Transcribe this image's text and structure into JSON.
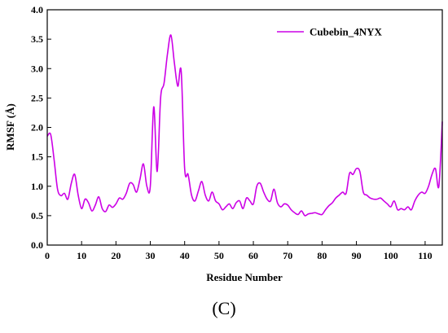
{
  "caption": "(C)",
  "colors": {
    "series": "#cc00e6",
    "axis": "#000000"
  },
  "chart_data": {
    "type": "line",
    "title": "",
    "xlabel": "Residue Number",
    "ylabel": "RMSF (Å)",
    "xlim": [
      0,
      115
    ],
    "ylim": [
      0.0,
      4.0
    ],
    "xticks": [
      "0",
      "10",
      "20",
      "30",
      "40",
      "50",
      "60",
      "70",
      "80",
      "90",
      "100",
      "110"
    ],
    "yticks": [
      "0.0",
      "0.5",
      "1.0",
      "1.5",
      "2.0",
      "2.5",
      "3.0",
      "3.5",
      "4.0"
    ],
    "grid": false,
    "legend_position": "top-right",
    "series": [
      {
        "name": "Cubebin_4NYX",
        "color": "#cc00e6",
        "x": [
          0,
          1,
          2,
          3,
          4,
          5,
          6,
          7,
          8,
          9,
          10,
          11,
          12,
          13,
          14,
          15,
          16,
          17,
          18,
          19,
          20,
          21,
          22,
          23,
          24,
          25,
          26,
          27,
          28,
          29,
          30,
          31,
          32,
          33,
          34,
          35,
          36,
          37,
          38,
          39,
          40,
          41,
          42,
          43,
          44,
          45,
          46,
          47,
          48,
          49,
          50,
          51,
          52,
          53,
          54,
          55,
          56,
          57,
          58,
          59,
          60,
          61,
          62,
          63,
          64,
          65,
          66,
          67,
          68,
          69,
          70,
          71,
          72,
          73,
          74,
          75,
          76,
          77,
          78,
          79,
          80,
          81,
          82,
          83,
          84,
          85,
          86,
          87,
          88,
          89,
          90,
          91,
          92,
          93,
          94,
          95,
          96,
          97,
          98,
          99,
          100,
          101,
          102,
          103,
          104,
          105,
          106,
          107,
          108,
          109,
          110,
          111,
          112,
          113,
          114,
          115
        ],
        "y": [
          1.85,
          1.88,
          1.45,
          0.95,
          0.84,
          0.88,
          0.78,
          1.05,
          1.2,
          0.85,
          0.62,
          0.78,
          0.72,
          0.58,
          0.68,
          0.82,
          0.62,
          0.57,
          0.68,
          0.64,
          0.7,
          0.8,
          0.78,
          0.88,
          1.05,
          1.03,
          0.9,
          1.12,
          1.38,
          1.0,
          1.0,
          2.35,
          1.25,
          2.5,
          2.75,
          3.25,
          3.57,
          3.1,
          2.7,
          2.95,
          1.3,
          1.2,
          0.85,
          0.75,
          0.92,
          1.08,
          0.85,
          0.75,
          0.9,
          0.75,
          0.7,
          0.6,
          0.65,
          0.7,
          0.62,
          0.72,
          0.75,
          0.62,
          0.8,
          0.75,
          0.7,
          1.0,
          1.05,
          0.9,
          0.78,
          0.75,
          0.95,
          0.72,
          0.65,
          0.7,
          0.68,
          0.6,
          0.55,
          0.52,
          0.58,
          0.5,
          0.53,
          0.54,
          0.55,
          0.53,
          0.52,
          0.6,
          0.67,
          0.72,
          0.8,
          0.85,
          0.9,
          0.88,
          1.22,
          1.2,
          1.3,
          1.25,
          0.9,
          0.85,
          0.8,
          0.78,
          0.78,
          0.8,
          0.75,
          0.7,
          0.65,
          0.75,
          0.6,
          0.62,
          0.6,
          0.65,
          0.6,
          0.75,
          0.85,
          0.9,
          0.88,
          1.0,
          1.2,
          1.3,
          1.0,
          2.1
        ]
      }
    ]
  }
}
